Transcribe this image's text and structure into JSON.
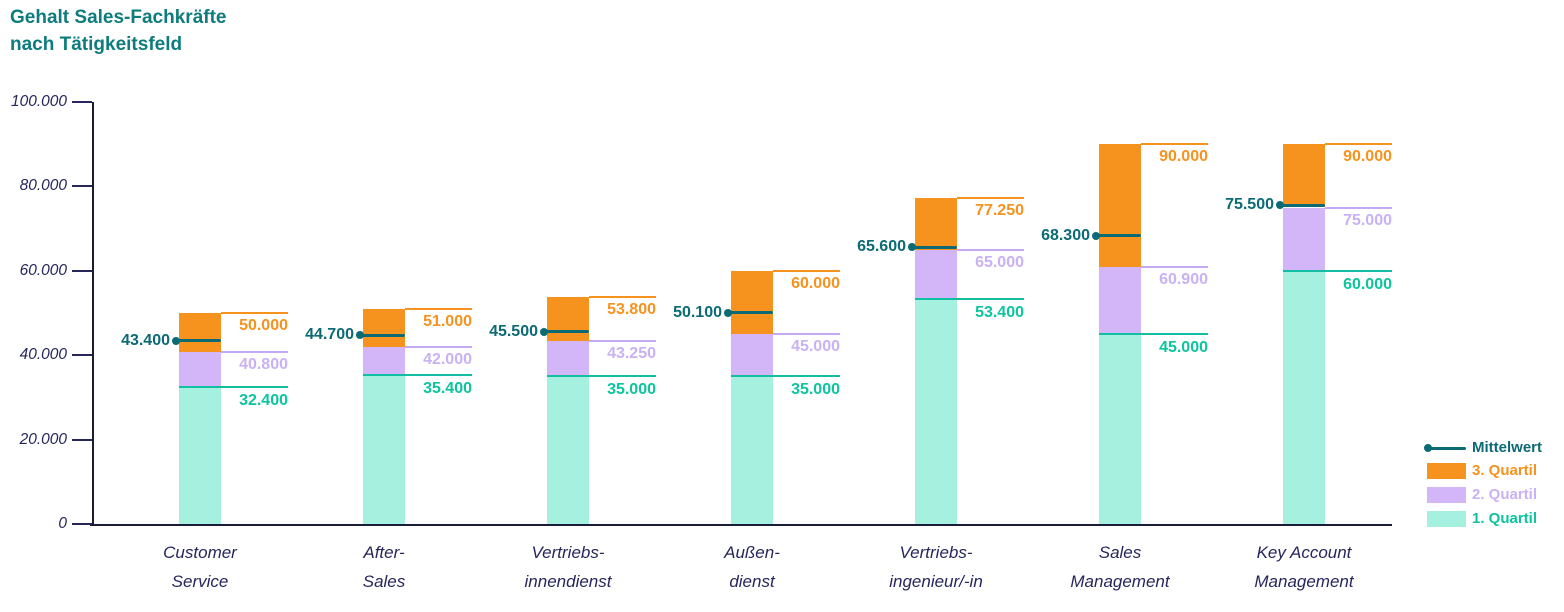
{
  "title": {
    "line1": "Gehalt Sales-Fachkräfte",
    "line2": "nach Tätigkeitsfeld"
  },
  "colors": {
    "title_teal": "#0E7C7D",
    "navy_text": "#26265C",
    "axis_line": "#1B1B3A",
    "q1_fill": "#A5F0DE",
    "q1_line": "#13BFA2",
    "q1_text": "#0CC49E",
    "q2_fill": "#D2B6F8",
    "q2_line": "#C5A9F3",
    "q2_text": "#C9B1F5",
    "q3_fill": "#F6921E",
    "q3_line": "#F6921E",
    "q3_text": "#F6921E",
    "mean": "#0B6A74",
    "background": "#FFFFFF"
  },
  "legend": {
    "items": [
      {
        "id": "mittelwert",
        "label": "Mittelwert",
        "symbol": "mean-line-dot-icon"
      },
      {
        "id": "q3",
        "label": "3. Quartil",
        "symbol": "orange-swatch"
      },
      {
        "id": "q2",
        "label": "2. Quartil",
        "symbol": "lavender-swatch"
      },
      {
        "id": "q1",
        "label": "1. Quartil",
        "symbol": "mint-swatch"
      }
    ]
  },
  "chart_data": {
    "type": "bar",
    "stacked": true,
    "title": "Gehalt Sales-Fachkräfte nach Tätigkeitsfeld",
    "xlabel": "",
    "ylabel": "",
    "ylim": [
      0,
      100000
    ],
    "grid": false,
    "legend_position": "right-bottom",
    "y_ticks": [
      {
        "value": 0,
        "label": "0"
      },
      {
        "value": 20000,
        "label": "20.000"
      },
      {
        "value": 40000,
        "label": "40.000"
      },
      {
        "value": 60000,
        "label": "60.000"
      },
      {
        "value": 80000,
        "label": "80.000"
      },
      {
        "value": 100000,
        "label": "100.000"
      }
    ],
    "categories": [
      "Customer Service",
      "After-Sales",
      "Vertriebsinnendienst",
      "Außendienst",
      "Vertriebsingenieur/-in",
      "Sales Management",
      "Key Account Management"
    ],
    "series": [
      {
        "name": "1. Quartil",
        "values": [
          32400,
          35400,
          35000,
          35000,
          53400,
          45000,
          60000
        ]
      },
      {
        "name": "2. Quartil",
        "values": [
          40800,
          42000,
          43250,
          45000,
          65000,
          60900,
          75000
        ]
      },
      {
        "name": "3. Quartil",
        "values": [
          50000,
          51000,
          53800,
          60000,
          77250,
          90000,
          90000
        ]
      },
      {
        "name": "Mittelwert",
        "values": [
          43400,
          44700,
          45500,
          50100,
          65600,
          68300,
          75500
        ]
      }
    ],
    "bars": [
      {
        "cat_line1": "Customer",
        "cat_line2": "Service",
        "q1": 32400,
        "q1_label": "32.400",
        "median": 40800,
        "median_label": "40.800",
        "q3": 50000,
        "q3_label": "50.000",
        "mean": 43400,
        "mean_label": "43.400"
      },
      {
        "cat_line1": "After-",
        "cat_line2": "Sales",
        "q1": 35400,
        "q1_label": "35.400",
        "median": 42000,
        "median_label": "42.000",
        "q3": 51000,
        "q3_label": "51.000",
        "mean": 44700,
        "mean_label": "44.700"
      },
      {
        "cat_line1": "Vertriebs-",
        "cat_line2": "innendienst",
        "q1": 35000,
        "q1_label": "35.000",
        "median": 43250,
        "median_label": "43.250",
        "q3": 53800,
        "q3_label": "53.800",
        "mean": 45500,
        "mean_label": "45.500"
      },
      {
        "cat_line1": "Außen-",
        "cat_line2": "dienst",
        "q1": 35000,
        "q1_label": "35.000",
        "median": 45000,
        "median_label": "45.000",
        "q3": 60000,
        "q3_label": "60.000",
        "mean": 50100,
        "mean_label": "50.100"
      },
      {
        "cat_line1": "Vertriebs-",
        "cat_line2": "ingenieur/-in",
        "q1": 53400,
        "q1_label": "53.400",
        "median": 65000,
        "median_label": "65.000",
        "q3": 77250,
        "q3_label": "77.250",
        "mean": 65600,
        "mean_label": "65.600"
      },
      {
        "cat_line1": "Sales",
        "cat_line2": "Management",
        "q1": 45000,
        "q1_label": "45.000",
        "median": 60900,
        "median_label": "60.900",
        "q3": 90000,
        "q3_label": "90.000",
        "mean": 68300,
        "mean_label": "68.300"
      },
      {
        "cat_line1": "Key Account",
        "cat_line2": "Management",
        "q1": 60000,
        "q1_label": "60.000",
        "median": 75000,
        "median_label": "75.000",
        "q3": 90000,
        "q3_label": "90.000",
        "mean": 75500,
        "mean_label": "75.500"
      }
    ]
  }
}
